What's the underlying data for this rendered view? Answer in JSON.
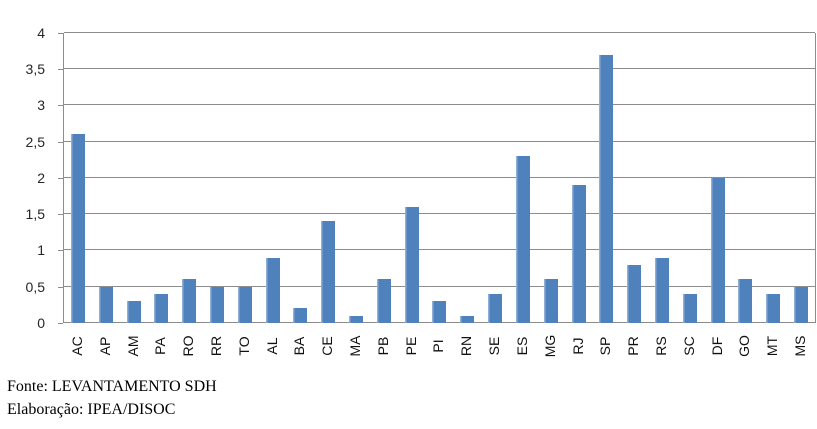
{
  "chart_data": {
    "type": "bar",
    "title": "",
    "xlabel": "",
    "ylabel": "",
    "categories": [
      "AC",
      "AP",
      "AM",
      "PA",
      "RO",
      "RR",
      "TO",
      "AL",
      "BA",
      "CE",
      "MA",
      "PB",
      "PE",
      "PI",
      "RN",
      "SE",
      "ES",
      "MG",
      "RJ",
      "SP",
      "PR",
      "RS",
      "SC",
      "DF",
      "GO",
      "MT",
      "MS"
    ],
    "values": [
      2.6,
      0.5,
      0.3,
      0.4,
      0.6,
      0.5,
      0.5,
      0.9,
      0.2,
      1.4,
      0.1,
      0.6,
      1.6,
      0.3,
      0.1,
      0.4,
      2.3,
      0.6,
      1.9,
      3.7,
      0.8,
      0.9,
      0.4,
      2.0,
      0.6,
      0.4,
      0.5
    ],
    "ylim": [
      0,
      4
    ],
    "ytick_step": 0.5,
    "ytick_labels": [
      "0",
      "0,5",
      "1",
      "1,5",
      "2",
      "2,5",
      "3",
      "3,5",
      "4"
    ],
    "grid": true,
    "legend_position": "none",
    "bar_color": "#4f81bd",
    "bar_highlight_color": "#8fafd6",
    "gridline_color": "#8c8c8c",
    "axis_color": "#8c8c8c"
  },
  "footer": {
    "line1": "Fonte: LEVANTAMENTO SDH",
    "line2": "Elaboração: IPEA/DISOC"
  }
}
